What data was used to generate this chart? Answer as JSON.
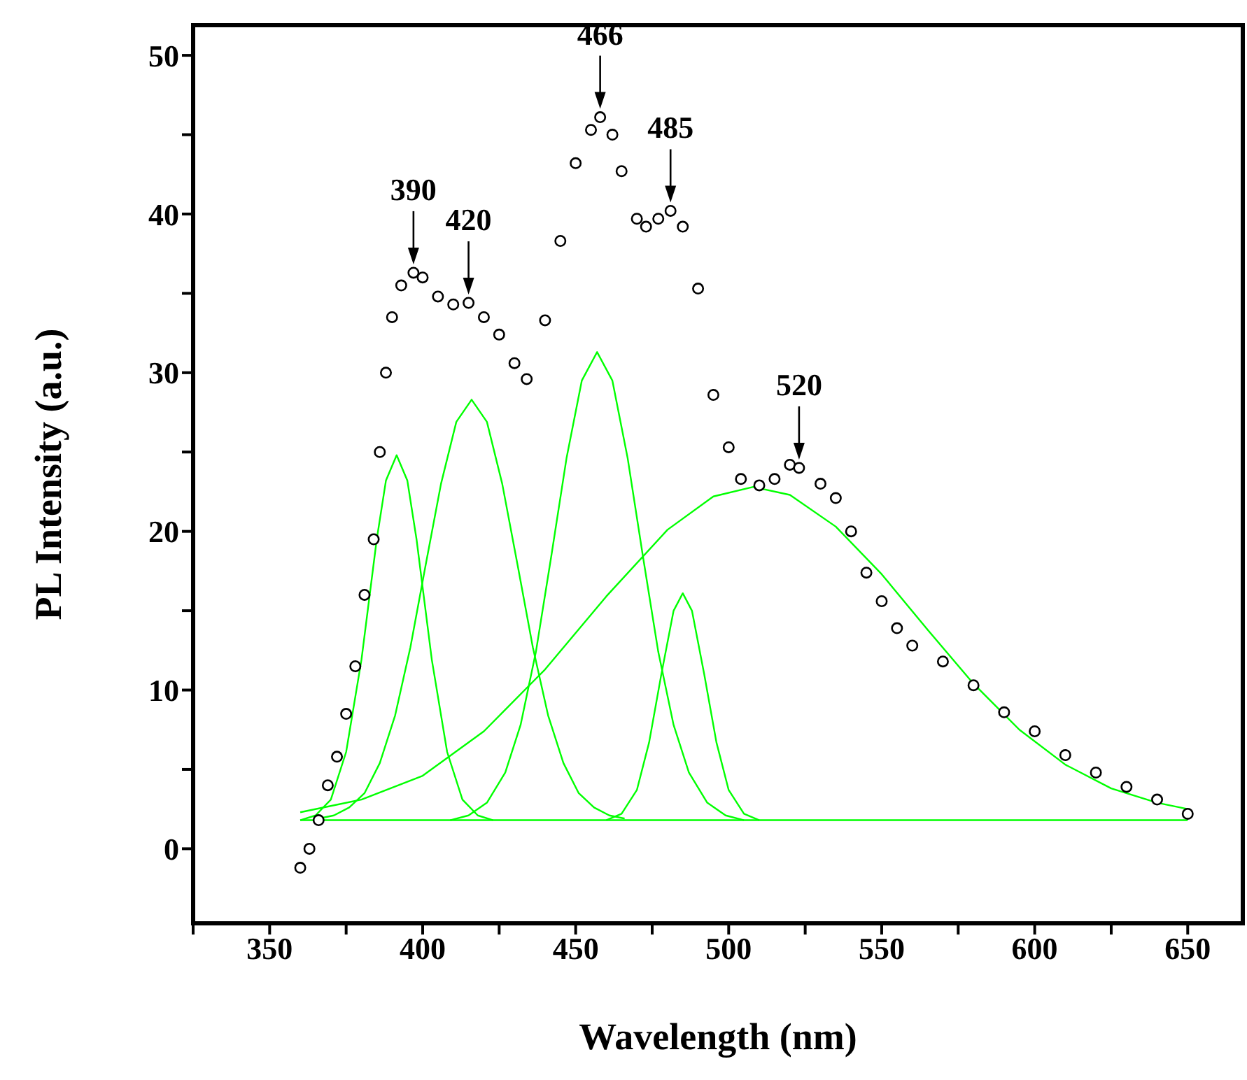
{
  "chart_data": {
    "type": "line",
    "xlabel": "Wavelength (nm)",
    "ylabel": "PL Intensity (a.u.)",
    "xlim": [
      325,
      668
    ],
    "ylim": [
      -4.7,
      51.9
    ],
    "xticks": [
      {
        "value": 325,
        "label": null
      },
      350,
      {
        "value": 375,
        "label": null
      },
      400,
      {
        "value": 425,
        "label": null
      },
      450,
      {
        "value": 475,
        "label": null
      },
      500,
      {
        "value": 525,
        "label": null
      },
      550,
      {
        "value": 575,
        "label": null
      },
      600,
      {
        "value": 625,
        "label": null
      },
      650
    ],
    "yticks": [
      0,
      {
        "value": 5,
        "label": null
      },
      10,
      {
        "value": 15,
        "label": null
      },
      20,
      {
        "value": 25,
        "label": null
      },
      30,
      {
        "value": 35,
        "label": null
      },
      40,
      {
        "value": 45,
        "label": null
      },
      50
    ],
    "series": [
      {
        "type": "scatter",
        "marker": "circle",
        "color": "#000000",
        "x": [
          360,
          363,
          366,
          369,
          372,
          375,
          378,
          381,
          384,
          386,
          388,
          390,
          393,
          397,
          400,
          405,
          410,
          415,
          420,
          425,
          430,
          434,
          440,
          445,
          450,
          455,
          458,
          462,
          465,
          470,
          473,
          477,
          481,
          485,
          490,
          495,
          500,
          504,
          510,
          515,
          520,
          523,
          530,
          535,
          540,
          545,
          550,
          555,
          560,
          570,
          580,
          590,
          600,
          610,
          620,
          630,
          640,
          650
        ],
        "values": [
          -1.2,
          0,
          1.8,
          4,
          5.8,
          8.5,
          11.5,
          16,
          19.5,
          25,
          30,
          33.5,
          35.5,
          36.3,
          36,
          34.8,
          34.3,
          34.4,
          33.5,
          32.4,
          30.6,
          29.6,
          33.3,
          38.3,
          43.2,
          45.3,
          46.1,
          45,
          42.7,
          39.7,
          39.2,
          39.7,
          40.2,
          39.2,
          35.3,
          28.6,
          25.3,
          23.3,
          22.9,
          23.3,
          24.2,
          24,
          23,
          22.1,
          20,
          17.4,
          15.6,
          13.9,
          12.8,
          11.8,
          10.3,
          8.6,
          7.4,
          5.9,
          4.8,
          3.9,
          3.1,
          2.2
        ]
      },
      {
        "color": "#00ff00",
        "x": [
          360,
          365,
          370,
          375,
          380,
          385,
          388,
          391.5,
          395,
          398,
          403,
          408,
          413,
          418,
          423
        ],
        "values": [
          1.8,
          2.1,
          3.1,
          6.1,
          11.9,
          19.5,
          23.2,
          24.8,
          23.2,
          19.5,
          11.9,
          6.1,
          3.1,
          2.1,
          1.8
        ]
      },
      {
        "color": "#00ff00",
        "x": [
          366,
          371,
          376,
          381,
          386,
          391,
          396,
          401,
          406,
          411,
          416,
          421,
          426,
          431,
          436,
          441,
          446,
          451,
          456,
          461,
          466
        ],
        "values": [
          1.9,
          2.1,
          2.6,
          3.5,
          5.4,
          8.4,
          12.7,
          17.9,
          23.0,
          26.9,
          28.3,
          26.9,
          23.0,
          17.9,
          12.7,
          8.4,
          5.4,
          3.5,
          2.6,
          2.1,
          1.9
        ]
      },
      {
        "color": "#00ff00",
        "x": [
          409,
          415,
          421,
          427,
          432,
          437,
          442,
          447,
          452,
          457,
          462,
          467,
          472,
          477,
          482,
          487,
          493,
          499,
          505
        ],
        "values": [
          1.8,
          2.1,
          2.9,
          4.8,
          7.8,
          12.4,
          18.4,
          24.6,
          29.5,
          31.3,
          29.5,
          24.6,
          18.4,
          12.4,
          7.8,
          4.8,
          2.9,
          2.1,
          1.8
        ]
      },
      {
        "color": "#00ff00",
        "x": [
          460,
          465,
          470,
          474,
          478,
          482,
          485,
          488,
          492,
          496,
          500,
          505,
          510
        ],
        "values": [
          1.8,
          2.2,
          3.7,
          6.7,
          11,
          15,
          16.1,
          15,
          11,
          6.7,
          3.7,
          2.2,
          1.8
        ]
      },
      {
        "color": "#00ff00",
        "x": [
          360,
          380,
          400,
          420,
          440,
          460,
          480,
          495,
          508,
          520,
          535,
          550,
          565,
          580,
          595,
          610,
          625,
          640,
          650
        ],
        "values": [
          2.3,
          3.1,
          4.6,
          7.4,
          11.3,
          15.9,
          20.1,
          22.2,
          22.8,
          22.3,
          20.3,
          17.3,
          13.8,
          10.4,
          7.5,
          5.3,
          3.8,
          2.9,
          2.5
        ]
      },
      {
        "color": "#00ff00",
        "x": [
          360,
          650
        ],
        "values": [
          1.8,
          1.8
        ]
      }
    ],
    "annotations": [
      {
        "text": "390",
        "x": 397,
        "y": 36.3
      },
      {
        "text": "420",
        "x": 415,
        "y": 34.4
      },
      {
        "text": "466",
        "x": 458,
        "y": 46.1
      },
      {
        "text": "485",
        "x": 481,
        "y": 40.2
      },
      {
        "text": "520",
        "x": 523,
        "y": 24
      }
    ]
  }
}
